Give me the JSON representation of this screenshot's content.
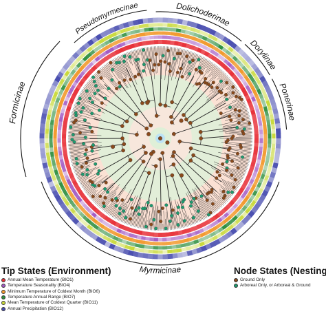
{
  "clades": [
    {
      "label": "Formicinae",
      "ring_color": "#111111"
    },
    {
      "label": "Pseudomyrmecinae",
      "ring_color": "#111111"
    },
    {
      "label": "Dolichoderinae",
      "ring_color": "#111111"
    },
    {
      "label": "Dorylinae",
      "ring_color": "#111111"
    },
    {
      "label": "Ponerinae",
      "ring_color": "#111111"
    },
    {
      "label": "Myrmicinae",
      "ring_color": "#111111"
    }
  ],
  "tip_legend": {
    "title": "Tip States (Environment)",
    "items": [
      {
        "label": "Annual Mean Temperature (BIO1)",
        "color": "#e8323a"
      },
      {
        "label": "Temperature Seasonality (BIO4)",
        "color": "#a35bc4"
      },
      {
        "label": "Minimum Temperature of Coldest Month (BIO6)",
        "color": "#f29a2e"
      },
      {
        "label": "Temperature Annual Range (BIO7)",
        "color": "#2e8f3e"
      },
      {
        "label": "Mean Temperature of Coldest Quarter (BIO11)",
        "color": "#c9d93a"
      },
      {
        "label": "Annual Precipitation (BIO12)",
        "color": "#4a4fb0"
      }
    ]
  },
  "node_legend": {
    "title": "Node States (Nesting)",
    "items": [
      {
        "label": "Ground Only",
        "color": "#8a4a1c"
      },
      {
        "label": "Arboreal Only, or Arboreal & Ground",
        "color": "#1f9a6f"
      }
    ]
  },
  "colors": {
    "background_ground": "#fbe1d4",
    "background_arboreal": "#dff0d8",
    "root": "#bde3f5",
    "branch": "#222222"
  }
}
